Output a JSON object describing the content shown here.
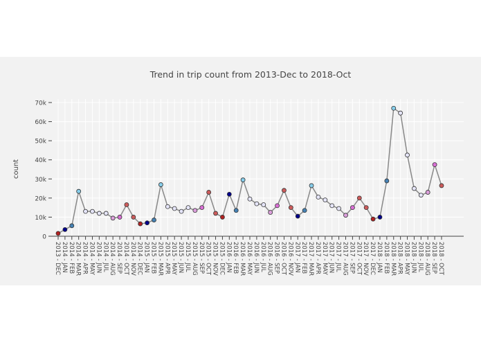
{
  "chart_data": {
    "type": "line",
    "title": "Trend in trip count from 2013-Dec to 2018-Oct",
    "y_label": "count",
    "categories": [
      "2013 - DEC",
      "2014 - JAN",
      "2014 - FEB",
      "2014 - MAR",
      "2014 - APR",
      "2014 - MAY",
      "2014 - JUN",
      "2014 - JUL",
      "2014 - AUG",
      "2014 - SEP",
      "2014 - OCT",
      "2014 - NOV",
      "2014 - DEC",
      "2015 - JAN",
      "2015 - FEB",
      "2015 - MAR",
      "2015 - APR",
      "2015 - MAY",
      "2015 - JUN",
      "2015 - JUL",
      "2015 - AUG",
      "2015 - SEP",
      "2015 - OCT",
      "2015 - NOV",
      "2015 - DEC",
      "2016 - JAN",
      "2016 - FEB",
      "2016 - MAR",
      "2016 - MAY",
      "2016 - JUN",
      "2016 - JUL",
      "2016 - AUG",
      "2016 - SEP",
      "2016 - OCT",
      "2016 - NOV",
      "2017 - JAN",
      "2017 - FEB",
      "2017 - MAR",
      "2017 - APR",
      "2017 - MAY",
      "2017 - JUN",
      "2017 - JUL",
      "2017 - AUG",
      "2017 - SEP",
      "2017 - OCT",
      "2017 - NOV",
      "2017 - DEC",
      "2018 - JAN",
      "2018 - FEB",
      "2018 - MAR",
      "2018 - APR",
      "2018 - MAY",
      "2018 - JUN",
      "2018 - JUL",
      "2018 - AUG",
      "2018 - SEP",
      "2018 - OCT"
    ],
    "series": [
      {
        "color": "#888888",
        "values": [
          1500,
          3500,
          5500,
          23500,
          13000,
          13000,
          12000,
          12000,
          9500,
          10000,
          16500,
          10000,
          6500,
          7000,
          8500,
          27000,
          15500,
          14500,
          13000,
          15000,
          13500,
          15000,
          23000,
          12000,
          10000,
          22000,
          13500,
          29500,
          19500,
          17000,
          16500,
          12500,
          16000,
          24000,
          15000,
          10500,
          13500,
          26500,
          20500,
          19000,
          16000,
          14500,
          11000,
          15000,
          20000,
          15000,
          9000,
          10000,
          29000,
          67000,
          64500,
          42500,
          25000,
          21500,
          23000,
          37500,
          26500
        ],
        "marker_colors": [
          "#b22222",
          "#00008b",
          "#4682b4",
          "#87ceeb",
          "#e6e6fa",
          "#e6e6fa",
          "#e6e6fa",
          "#e6e6fa",
          "#dda0dd",
          "#da70d6",
          "#cd5c5c",
          "#cd5c5c",
          "#b22222",
          "#00008b",
          "#4682b4",
          "#87ceeb",
          "#e6e6fa",
          "#e6e6fa",
          "#e6e6fa",
          "#e6e6fa",
          "#dda0dd",
          "#da70d6",
          "#cd5c5c",
          "#cd5c5c",
          "#b22222",
          "#00008b",
          "#4682b4",
          "#87ceeb",
          "#e6e6fa",
          "#e6e6fa",
          "#e6e6fa",
          "#dda0dd",
          "#da70d6",
          "#cd5c5c",
          "#cd5c5c",
          "#00008b",
          "#4682b4",
          "#87ceeb",
          "#e6e6fa",
          "#e6e6fa",
          "#e6e6fa",
          "#e6e6fa",
          "#dda0dd",
          "#da70d6",
          "#cd5c5c",
          "#cd5c5c",
          "#b22222",
          "#00008b",
          "#4682b4",
          "#87ceeb",
          "#e6e6fa",
          "#e6e6fa",
          "#e6e6fa",
          "#e6e6fa",
          "#dda0dd",
          "#da70d6",
          "#cd5c5c"
        ]
      }
    ],
    "ylim": [
      0,
      70000
    ],
    "yticks": [
      0,
      {
        "value": 10000,
        "label": "10k"
      },
      {
        "value": 20000,
        "label": "20k"
      },
      {
        "value": 30000,
        "label": "30k"
      },
      {
        "value": 40000,
        "label": "40k"
      },
      {
        "value": 50000,
        "label": "50k"
      },
      {
        "value": 60000,
        "label": "60k"
      },
      {
        "value": 70000,
        "label": "70k"
      }
    ],
    "grid": true
  }
}
